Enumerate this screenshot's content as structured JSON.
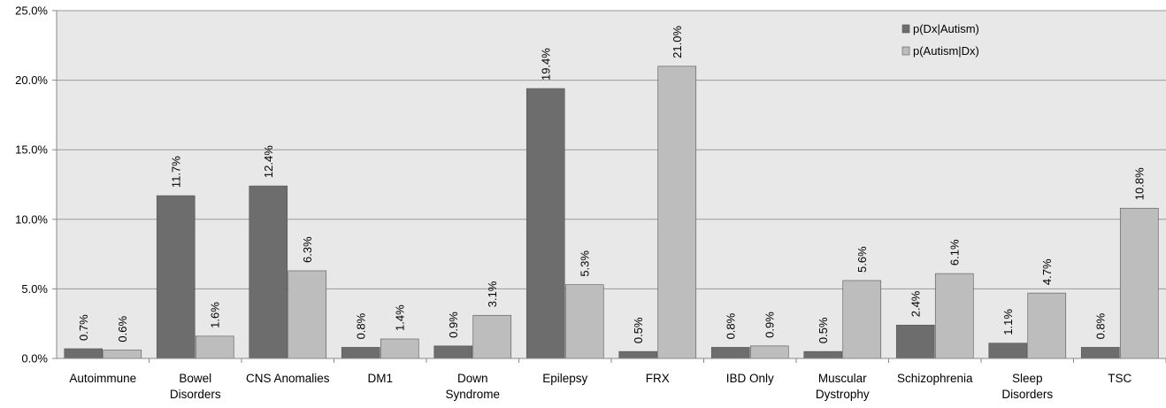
{
  "chart_data": {
    "type": "bar",
    "categories": [
      [
        "Autoimmune"
      ],
      [
        "Bowel",
        "Disorders"
      ],
      [
        "CNS Anomalies"
      ],
      [
        "DM1"
      ],
      [
        "Down",
        "Syndrome"
      ],
      [
        "Epilepsy"
      ],
      [
        "FRX"
      ],
      [
        "IBD Only"
      ],
      [
        "Muscular",
        "Dystrophy"
      ],
      [
        "Schizophrenia"
      ],
      [
        "Sleep",
        "Disorders"
      ],
      [
        "TSC"
      ]
    ],
    "series": [
      {
        "name": "p(Dx|Autism)",
        "color": "#6d6d6d",
        "values": [
          0.7,
          11.7,
          12.4,
          0.8,
          0.9,
          19.4,
          0.5,
          0.8,
          0.5,
          2.4,
          1.1,
          0.8
        ],
        "labels": [
          "0.7%",
          "11.7%",
          "12.4%",
          "0.8%",
          "0.9%",
          "19.4%",
          "0.5%",
          "0.8%",
          "0.5%",
          "2.4%",
          "1.1%",
          "0.8%"
        ]
      },
      {
        "name": "p(Autism|Dx)",
        "color": "#bdbdbd",
        "values": [
          0.6,
          1.6,
          6.3,
          1.4,
          3.1,
          5.3,
          21.0,
          0.9,
          5.6,
          6.1,
          4.7,
          10.8
        ],
        "labels": [
          "0.6%",
          "1.6%",
          "6.3%",
          "1.4%",
          "3.1%",
          "5.3%",
          "21.0%",
          "0.9%",
          "5.6%",
          "6.1%",
          "4.7%",
          "10.8%"
        ]
      }
    ],
    "yticks": [
      "0.0%",
      "5.0%",
      "10.0%",
      "15.0%",
      "20.0%",
      "25.0%"
    ],
    "ylim": [
      0,
      25
    ],
    "grid": true,
    "legend": "top-right",
    "plot_background": "#e8e8e8"
  }
}
